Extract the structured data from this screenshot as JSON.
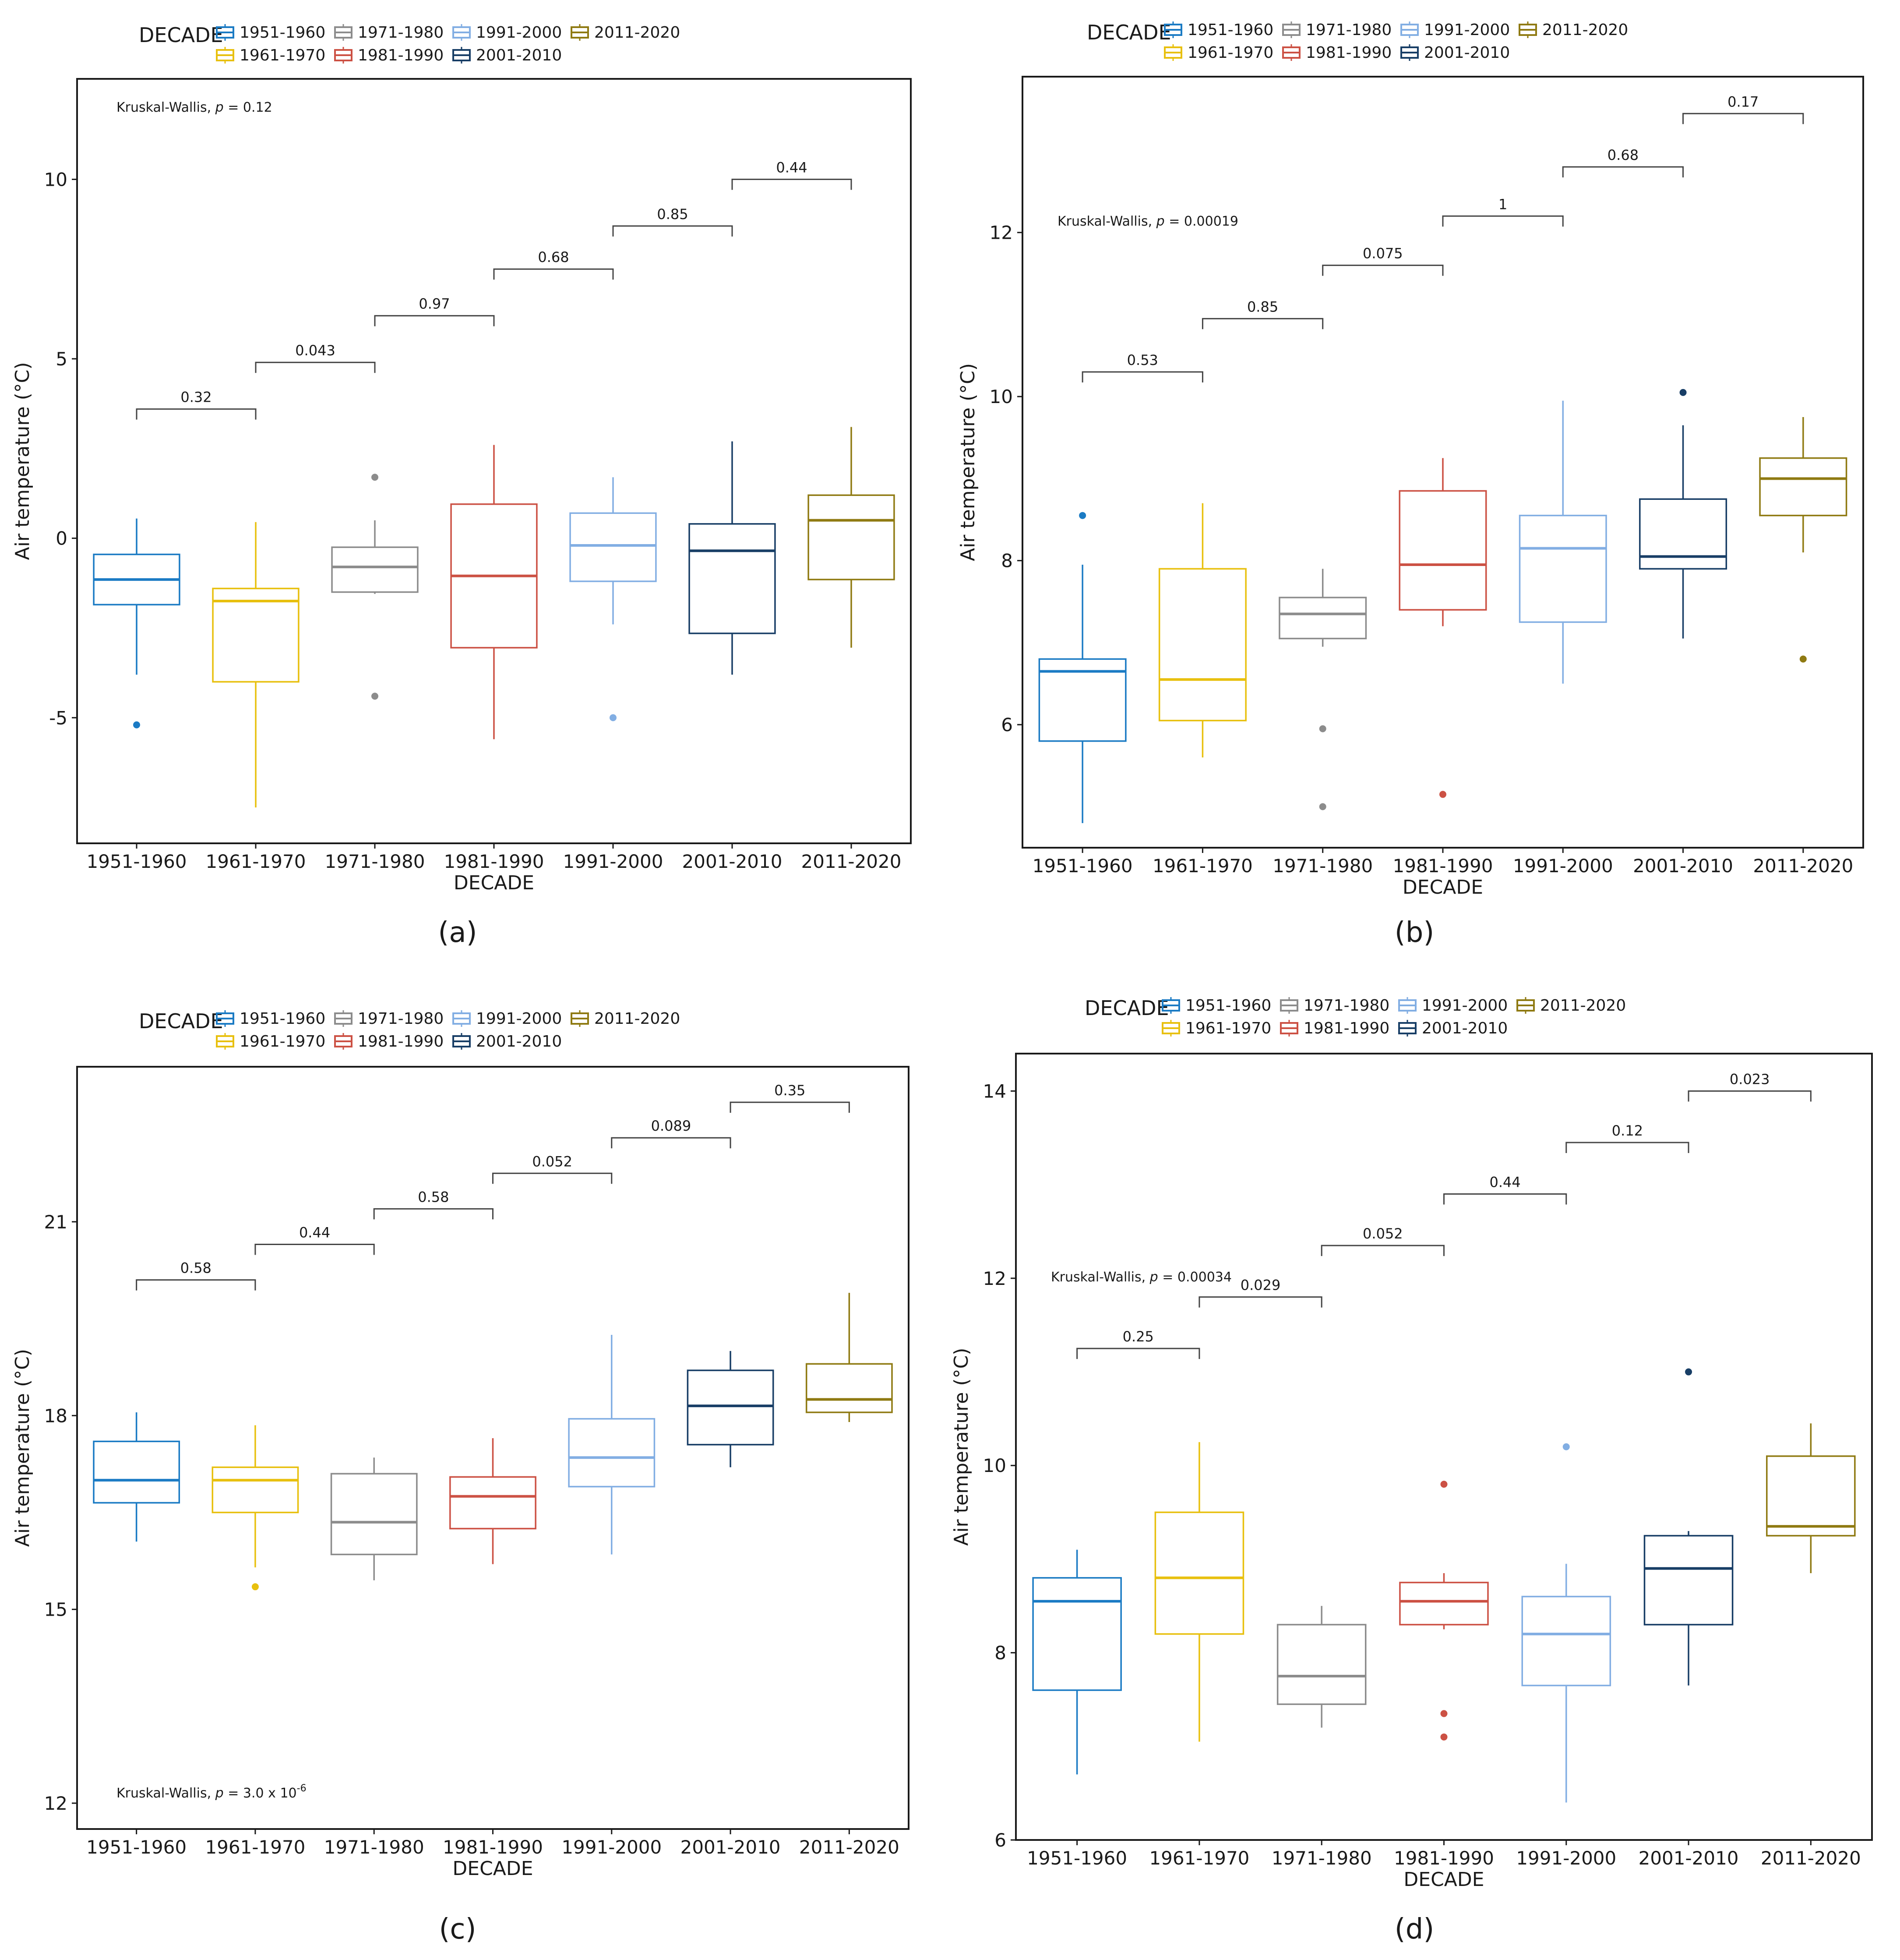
{
  "chart_data": [
    {
      "panel_label": "(a)",
      "type": "box",
      "xlabel": "DECADE",
      "ylabel": "Air temperature (°C)",
      "ylim": [
        -8.5,
        12.8
      ],
      "yticks": [
        -5,
        0,
        5,
        10
      ],
      "ytick_labels": [
        "-5",
        "0",
        "5",
        "10"
      ],
      "kruskal": {
        "prefix": "Kruskal-Wallis, ",
        "p_symbol": "p",
        "value": " = 0.12",
        "placement": "top-left"
      },
      "pairwise_p": [
        "0.32",
        "0.043",
        "0.97",
        "0.68",
        "0.85",
        "0.44"
      ],
      "bracket_y": [
        3.6,
        4.9,
        6.2,
        7.5,
        8.7,
        10.0
      ],
      "boxes": [
        {
          "min": -3.8,
          "q1": -1.85,
          "median": -1.15,
          "q3": -0.45,
          "max": 0.55,
          "outliers": [
            -5.2
          ]
        },
        {
          "min": -7.5,
          "q1": -4.0,
          "median": -1.75,
          "q3": -1.4,
          "max": 0.45,
          "outliers": []
        },
        {
          "min": -1.55,
          "q1": -1.5,
          "median": -0.8,
          "q3": -0.25,
          "max": 0.5,
          "outliers": [
            1.7,
            -4.4
          ]
        },
        {
          "min": -5.6,
          "q1": -3.05,
          "median": -1.05,
          "q3": 0.95,
          "max": 2.6,
          "outliers": []
        },
        {
          "min": -2.4,
          "q1": -1.2,
          "median": -0.2,
          "q3": 0.7,
          "max": 1.7,
          "outliers": [
            -5.0
          ]
        },
        {
          "min": -3.8,
          "q1": -2.65,
          "median": -0.35,
          "q3": 0.4,
          "max": 2.7,
          "outliers": []
        },
        {
          "min": -3.05,
          "q1": -1.15,
          "median": 0.5,
          "q3": 1.2,
          "max": 3.1,
          "outliers": []
        }
      ]
    },
    {
      "panel_label": "(b)",
      "type": "box",
      "xlabel": "DECADE",
      "ylabel": "Air temperature (°C)",
      "ylim": [
        4.5,
        13.9
      ],
      "yticks": [
        6,
        8,
        10,
        12
      ],
      "ytick_labels": [
        "6",
        "8",
        "10",
        "12"
      ],
      "kruskal": {
        "prefix": "Kruskal-Wallis, ",
        "p_symbol": "p",
        "value": " = 0.00019",
        "placement": "top-left"
      },
      "pairwise_p": [
        "0.53",
        "0.85",
        "0.075",
        "1",
        "0.68",
        "0.17"
      ],
      "bracket_y": [
        10.3,
        10.95,
        11.6,
        12.2,
        12.8,
        13.45
      ],
      "boxes": [
        {
          "min": 4.8,
          "q1": 5.8,
          "median": 6.65,
          "q3": 6.8,
          "max": 7.95,
          "outliers": [
            8.55
          ]
        },
        {
          "min": 5.6,
          "q1": 6.05,
          "median": 6.55,
          "q3": 7.9,
          "max": 8.7,
          "outliers": []
        },
        {
          "min": 6.95,
          "q1": 7.05,
          "median": 7.35,
          "q3": 7.55,
          "max": 7.9,
          "outliers": [
            5.95,
            5.0
          ]
        },
        {
          "min": 7.2,
          "q1": 7.4,
          "median": 7.95,
          "q3": 8.85,
          "max": 9.25,
          "outliers": [
            5.15
          ]
        },
        {
          "min": 6.5,
          "q1": 7.25,
          "median": 8.15,
          "q3": 8.55,
          "max": 9.95,
          "outliers": []
        },
        {
          "min": 7.05,
          "q1": 7.9,
          "median": 8.05,
          "q3": 8.75,
          "max": 9.65,
          "outliers": [
            10.05
          ]
        },
        {
          "min": 8.1,
          "q1": 8.55,
          "median": 9.0,
          "q3": 9.25,
          "max": 9.75,
          "outliers": [
            6.8
          ]
        }
      ]
    },
    {
      "panel_label": "(c)",
      "type": "box",
      "xlabel": "DECADE",
      "ylabel": "Air temperature (°C)",
      "ylim": [
        11.6,
        23.4
      ],
      "yticks": [
        12,
        15,
        18,
        21
      ],
      "ytick_labels": [
        "12",
        "15",
        "18",
        "21"
      ],
      "kruskal": {
        "prefix": "Kruskal-Wallis, ",
        "p_symbol": "p",
        "value": " = 3.0 x 10",
        "exponent": "-6",
        "placement": "bottom-left"
      },
      "pairwise_p": [
        "0.58",
        "0.44",
        "0.58",
        "0.052",
        "0.089",
        "0.35"
      ],
      "bracket_y": [
        20.1,
        20.65,
        21.2,
        21.75,
        22.3,
        22.85
      ],
      "boxes": [
        {
          "min": 16.05,
          "q1": 16.65,
          "median": 17.0,
          "q3": 17.6,
          "max": 18.05,
          "outliers": []
        },
        {
          "min": 15.65,
          "q1": 16.5,
          "median": 17.0,
          "q3": 17.2,
          "max": 17.85,
          "outliers": [
            15.35
          ]
        },
        {
          "min": 15.45,
          "q1": 15.85,
          "median": 16.35,
          "q3": 17.1,
          "max": 17.35,
          "outliers": []
        },
        {
          "min": 15.7,
          "q1": 16.25,
          "median": 16.75,
          "q3": 17.05,
          "max": 17.65,
          "outliers": []
        },
        {
          "min": 15.85,
          "q1": 16.9,
          "median": 17.35,
          "q3": 17.95,
          "max": 19.25,
          "outliers": []
        },
        {
          "min": 17.2,
          "q1": 17.55,
          "median": 18.15,
          "q3": 18.7,
          "max": 19.0,
          "outliers": []
        },
        {
          "min": 17.9,
          "q1": 18.05,
          "median": 18.25,
          "q3": 18.8,
          "max": 19.9,
          "outliers": []
        }
      ]
    },
    {
      "panel_label": "(d)",
      "type": "box",
      "xlabel": "DECADE",
      "ylabel": "Air temperature (°C)",
      "ylim": [
        6.0,
        14.4
      ],
      "yticks": [
        6,
        8,
        10,
        12,
        14
      ],
      "ytick_labels": [
        "6",
        "8",
        "10",
        "12",
        "14"
      ],
      "kruskal": {
        "prefix": "Kruskal-Wallis, ",
        "p_symbol": "p",
        "value": " = 0.00034",
        "placement": "top-left"
      },
      "pairwise_p": [
        "0.25",
        "0.029",
        "0.052",
        "0.44",
        "0.12",
        "0.023"
      ],
      "bracket_y": [
        11.25,
        11.8,
        12.35,
        12.9,
        13.45,
        14.0
      ],
      "boxes": [
        {
          "min": 6.7,
          "q1": 7.6,
          "median": 8.55,
          "q3": 8.8,
          "max": 9.1,
          "outliers": []
        },
        {
          "min": 7.05,
          "q1": 8.2,
          "median": 8.8,
          "q3": 9.5,
          "max": 10.25,
          "outliers": []
        },
        {
          "min": 7.2,
          "q1": 7.45,
          "median": 7.75,
          "q3": 8.3,
          "max": 8.5,
          "outliers": []
        },
        {
          "min": 8.25,
          "q1": 8.3,
          "median": 8.55,
          "q3": 8.75,
          "max": 8.85,
          "outliers": [
            9.8,
            7.35,
            7.1
          ]
        },
        {
          "min": 6.4,
          "q1": 7.65,
          "median": 8.2,
          "q3": 8.6,
          "max": 8.95,
          "outliers": [
            10.2
          ]
        },
        {
          "min": 7.65,
          "q1": 8.3,
          "median": 8.9,
          "q3": 9.25,
          "max": 9.3,
          "outliers": [
            11.0
          ]
        },
        {
          "min": 8.85,
          "q1": 9.25,
          "median": 9.35,
          "q3": 10.1,
          "max": 10.45,
          "outliers": []
        }
      ]
    }
  ],
  "categories": [
    "1951-1960",
    "1961-1970",
    "1971-1980",
    "1981-1990",
    "1991-2000",
    "2001-2010",
    "2011-2020"
  ],
  "legend": {
    "title": "DECADE",
    "placement": "top",
    "entries": [
      "1951-1960",
      "1961-1970",
      "1971-1980",
      "1981-1990",
      "1991-2000",
      "2001-2010",
      "2011-2020"
    ]
  },
  "colors": [
    "#1b7bc4",
    "#e8c00e",
    "#8c8c8c",
    "#cc5144",
    "#82aee3",
    "#183e66",
    "#8f7a12"
  ],
  "axis_color": "#1a1a1a",
  "bracket_color": "#444444"
}
